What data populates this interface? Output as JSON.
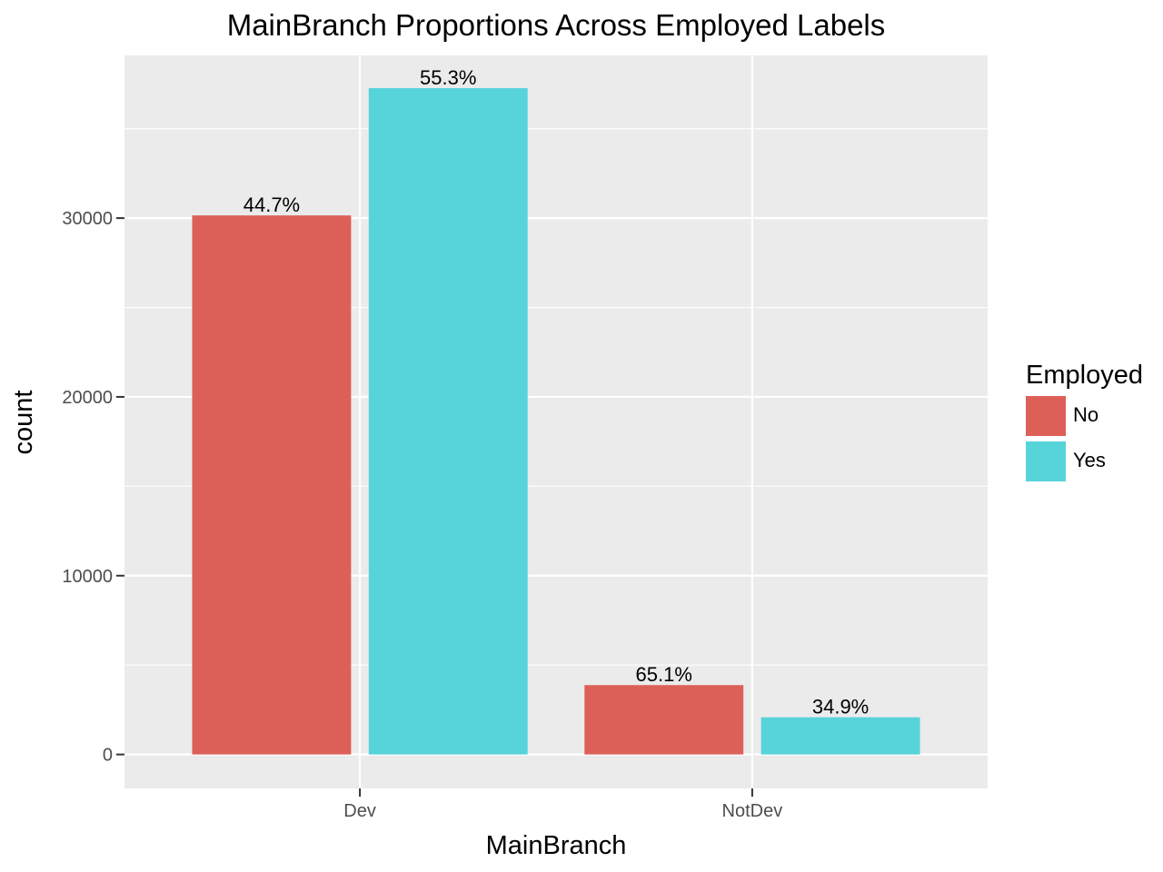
{
  "chart_data": {
    "type": "bar",
    "title": "MainBranch Proportions Across Employed Labels",
    "xlabel": "MainBranch",
    "ylabel": "count",
    "categories": [
      "Dev",
      "NotDev"
    ],
    "series": [
      {
        "name": "No",
        "color": "#dd6058",
        "values": [
          30150,
          3880
        ],
        "labels": [
          "44.7%",
          "65.1%"
        ]
      },
      {
        "name": "Yes",
        "color": "#57d3da",
        "values": [
          37270,
          2080
        ],
        "labels": [
          "55.3%",
          "34.9%"
        ]
      }
    ],
    "y_ticks": [
      0,
      10000,
      20000,
      30000
    ],
    "y_tick_labels": [
      "0",
      "10000",
      "20000",
      "30000"
    ],
    "ylim": [
      -1900,
      39100
    ],
    "grid": true,
    "legend": {
      "title": "Employed",
      "position": "right"
    },
    "panel_background": "#ebebeb"
  }
}
